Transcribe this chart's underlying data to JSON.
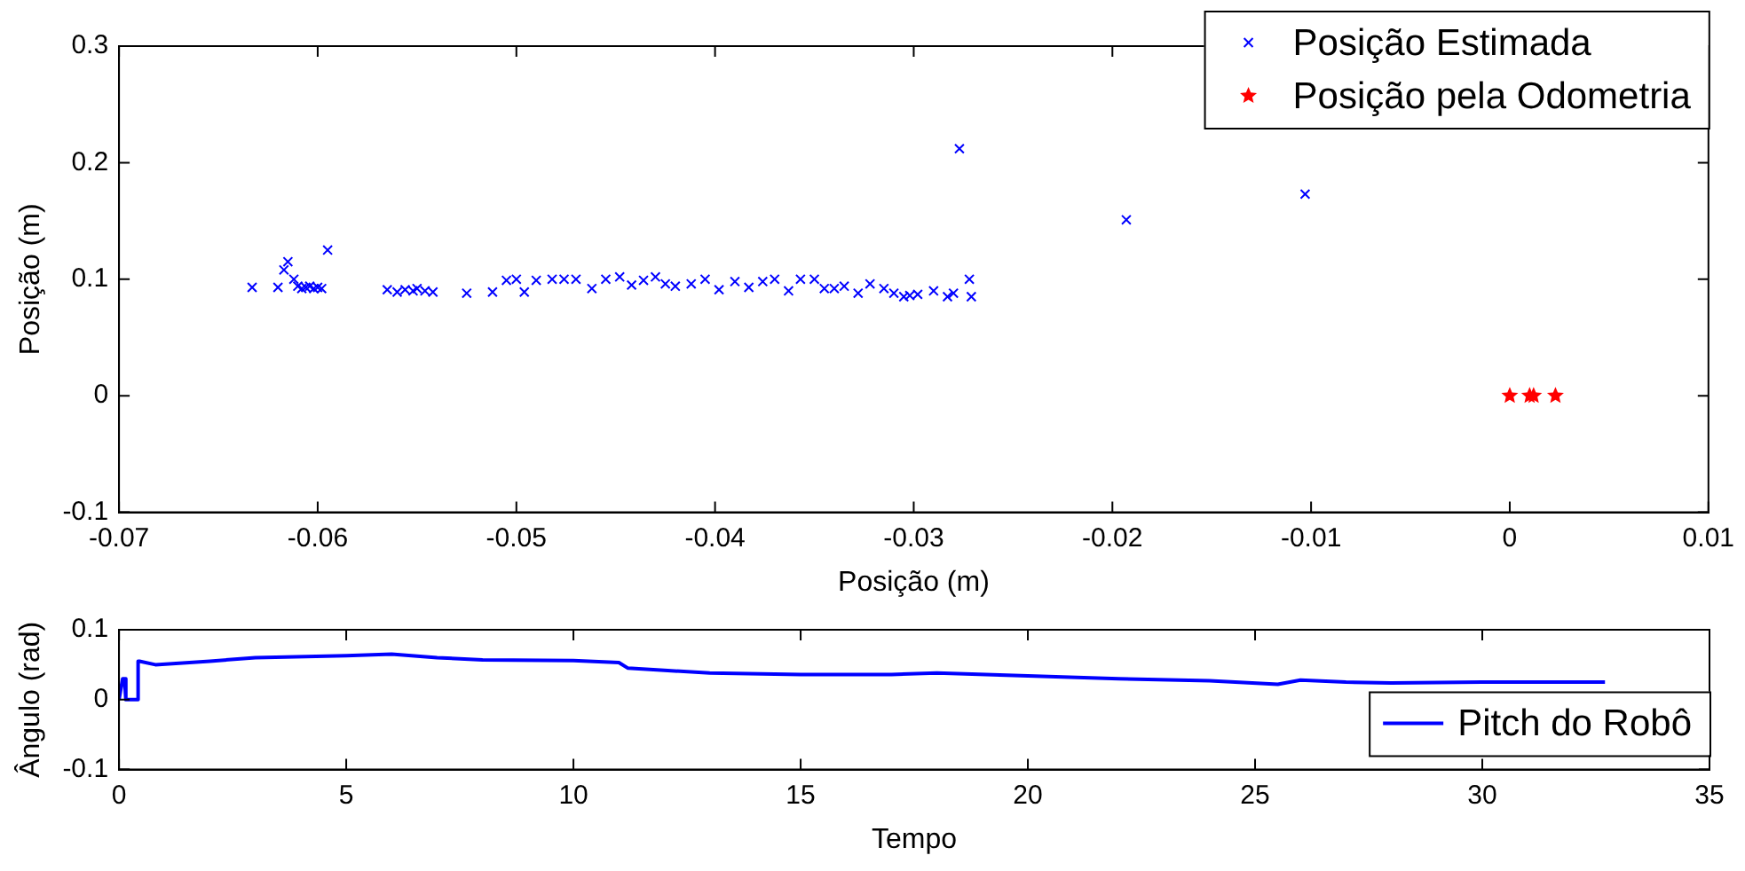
{
  "chart_data": [
    {
      "type": "scatter",
      "xlabel": "Posição (m)",
      "ylabel": "Posição (m)",
      "xlim": [
        -0.07,
        0.01
      ],
      "xticks": [
        -0.07,
        -0.06,
        -0.05,
        -0.04,
        -0.03,
        -0.02,
        -0.01,
        0,
        0.01
      ],
      "ylim": [
        -0.1,
        0.3
      ],
      "yticks": [
        -0.1,
        0,
        0.1,
        0.2,
        0.3
      ],
      "grid": false,
      "legend": "top right",
      "series": [
        {
          "name": "Posição Estimada",
          "color": "#0000ff",
          "marker": "cross",
          "x": [
            -0.0633,
            -0.062,
            -0.0617,
            -0.0615,
            -0.0612,
            -0.061,
            -0.0608,
            -0.0606,
            -0.0604,
            -0.0602,
            -0.06,
            -0.0598,
            -0.0595,
            -0.0565,
            -0.056,
            -0.0556,
            -0.0552,
            -0.055,
            -0.0546,
            -0.0542,
            -0.0525,
            -0.0512,
            -0.0505,
            -0.05,
            -0.0496,
            -0.049,
            -0.0482,
            -0.0476,
            -0.047,
            -0.0462,
            -0.0455,
            -0.0448,
            -0.0442,
            -0.0436,
            -0.043,
            -0.0425,
            -0.042,
            -0.0412,
            -0.0405,
            -0.0398,
            -0.039,
            -0.0383,
            -0.0376,
            -0.037,
            -0.0363,
            -0.0357,
            -0.035,
            -0.0345,
            -0.034,
            -0.0335,
            -0.0328,
            -0.0322,
            -0.0315,
            -0.031,
            -0.0305,
            -0.0302,
            -0.0298,
            -0.029,
            -0.0283,
            -0.028,
            -0.0277,
            -0.0272,
            -0.0271,
            -0.0193,
            -0.0103
          ],
          "values": [
            0.093,
            0.093,
            0.108,
            0.115,
            0.1,
            0.094,
            0.092,
            0.093,
            0.094,
            0.092,
            0.093,
            0.092,
            0.125,
            0.091,
            0.089,
            0.091,
            0.09,
            0.092,
            0.09,
            0.089,
            0.088,
            0.089,
            0.099,
            0.1,
            0.089,
            0.099,
            0.1,
            0.1,
            0.1,
            0.092,
            0.1,
            0.102,
            0.095,
            0.099,
            0.102,
            0.096,
            0.094,
            0.096,
            0.1,
            0.091,
            0.098,
            0.093,
            0.098,
            0.1,
            0.09,
            0.1,
            0.1,
            0.092,
            0.092,
            0.094,
            0.088,
            0.096,
            0.092,
            0.088,
            0.085,
            0.086,
            0.087,
            0.09,
            0.085,
            0.088,
            0.212,
            0.1,
            0.085,
            0.151,
            0.173
          ]
        },
        {
          "name": "Posição pela Odometria",
          "color": "#ff0000",
          "marker": "star",
          "x": [
            0,
            0.001,
            0.0012,
            0.0023
          ],
          "values": [
            0,
            0,
            0,
            0
          ]
        }
      ]
    },
    {
      "type": "line",
      "xlabel": "Tempo",
      "ylabel": "Ângulo (rad)",
      "xlim": [
        0,
        35
      ],
      "xticks": [
        0,
        5,
        10,
        15,
        20,
        25,
        30,
        35
      ],
      "ylim": [
        -0.1,
        0.1
      ],
      "yticks": [
        -0.1,
        0,
        0.1
      ],
      "grid": false,
      "legend": "bottom right",
      "line_style": "solid",
      "marker": "none",
      "series": [
        {
          "name": "Pitch do Robô",
          "color": "#0000ff",
          "x": [
            0,
            0.08,
            0.12,
            0.15,
            0.4,
            0.42,
            0.45,
            0.8,
            2,
            3,
            5,
            6,
            7,
            8,
            10,
            11,
            11.2,
            12,
            13,
            15,
            17,
            18,
            20,
            22,
            24,
            25.5,
            26,
            27,
            28,
            30,
            32.7
          ],
          "values": [
            0,
            0.03,
            0.03,
            0,
            0,
            0.055,
            0.055,
            0.05,
            0.055,
            0.06,
            0.063,
            0.065,
            0.06,
            0.057,
            0.056,
            0.053,
            0.045,
            0.042,
            0.038,
            0.036,
            0.036,
            0.038,
            0.034,
            0.03,
            0.027,
            0.022,
            0.028,
            0.025,
            0.024,
            0.025,
            0.025
          ]
        }
      ]
    }
  ]
}
